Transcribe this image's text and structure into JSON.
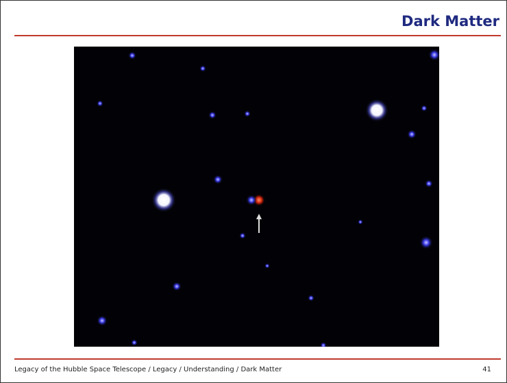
{
  "header": {
    "title": "Dark Matter"
  },
  "footer": {
    "text": "Legacy of the Hubble Space Telescope / Legacy / Understanding / Dark Matter",
    "page": "41"
  }
}
